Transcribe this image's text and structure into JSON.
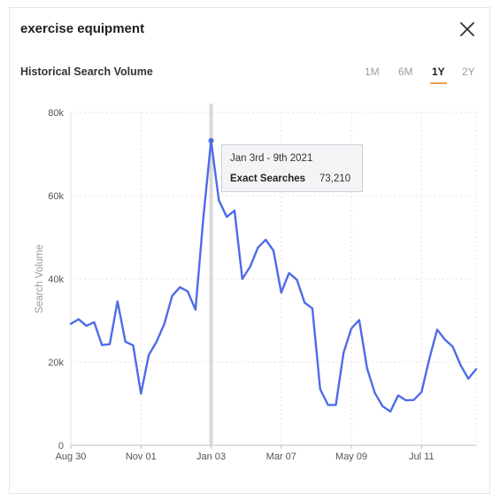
{
  "header": {
    "title": "exercise equipment",
    "close_icon": "close-icon"
  },
  "section": {
    "title": "Historical Search Volume"
  },
  "time_ranges": [
    {
      "label": "1M",
      "active": false
    },
    {
      "label": "6M",
      "active": false
    },
    {
      "label": "1Y",
      "active": true
    },
    {
      "label": "2Y",
      "active": false
    }
  ],
  "colors": {
    "line": "#4f6be8",
    "accent": "#f29c55",
    "highlight": "#d9d9d9"
  },
  "tooltip": {
    "date": "Jan 3rd - 9th 2021",
    "label": "Exact Searches",
    "value": "73,210"
  },
  "chart_data": {
    "type": "line",
    "ylabel": "Search Volume",
    "ylim": [
      0,
      80000
    ],
    "y_ticks": [
      {
        "value": 0,
        "label": "0"
      },
      {
        "value": 20000,
        "label": "20k"
      },
      {
        "value": 40000,
        "label": "40k"
      },
      {
        "value": 60000,
        "label": "60k"
      },
      {
        "value": 80000,
        "label": "80k"
      }
    ],
    "x_ticks": [
      {
        "index": 0,
        "label": "Aug 30"
      },
      {
        "index": 9,
        "label": "Nov 01"
      },
      {
        "index": 18,
        "label": "Jan 03"
      },
      {
        "index": 27,
        "label": "Mar 07"
      },
      {
        "index": 36,
        "label": "May 09"
      },
      {
        "index": 45,
        "label": "Jul 11"
      }
    ],
    "highlight_index": 18,
    "series": [
      {
        "values": [
          29200,
          30300,
          28700,
          29600,
          24100,
          24300,
          34600,
          24900,
          24000,
          12400,
          21700,
          24900,
          29200,
          35900,
          38000,
          37000,
          32600,
          54500,
          73210,
          58900,
          54900,
          56400,
          40000,
          42900,
          47500,
          49400,
          46800,
          36700,
          41400,
          39800,
          34300,
          32900,
          13500,
          9700,
          9700,
          22300,
          28100,
          30100,
          18600,
          12600,
          9400,
          8100,
          12000,
          10800,
          10900,
          12800,
          20800,
          27800,
          25400,
          23700,
          19300,
          16000,
          18300
        ]
      }
    ]
  }
}
